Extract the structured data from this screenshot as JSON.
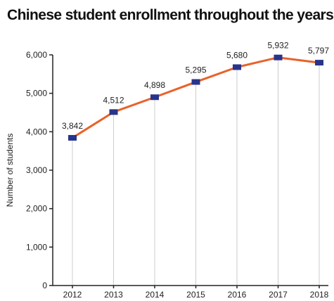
{
  "chart_data": {
    "type": "line",
    "title": "Chinese student enrollment throughout the years",
    "xlabel": "",
    "ylabel": "Number of students",
    "categories": [
      "2012",
      "2013",
      "2014",
      "2015",
      "2016",
      "2017",
      "2018"
    ],
    "series": [
      {
        "values": [
          3842,
          4512,
          4898,
          5295,
          5680,
          5932,
          5797
        ],
        "data_labels": [
          "3,842",
          "4,512",
          "4,898",
          "5,295",
          "5,680",
          "5,932",
          "5,797"
        ]
      }
    ],
    "yticks": [
      0,
      1000,
      2000,
      3000,
      4000,
      5000,
      6000
    ],
    "ytick_labels": [
      "0",
      "1,000",
      "2,000",
      "3,000",
      "4,000",
      "5,000",
      "6,000"
    ],
    "ylim": [
      0,
      6000
    ],
    "grid": "vertical drop lines at each category",
    "legend": "none",
    "colors": {
      "line": "#e8622a",
      "marker": "#28348a",
      "dropline": "#cccccc",
      "axis": "#222222",
      "text": "#222222"
    }
  }
}
